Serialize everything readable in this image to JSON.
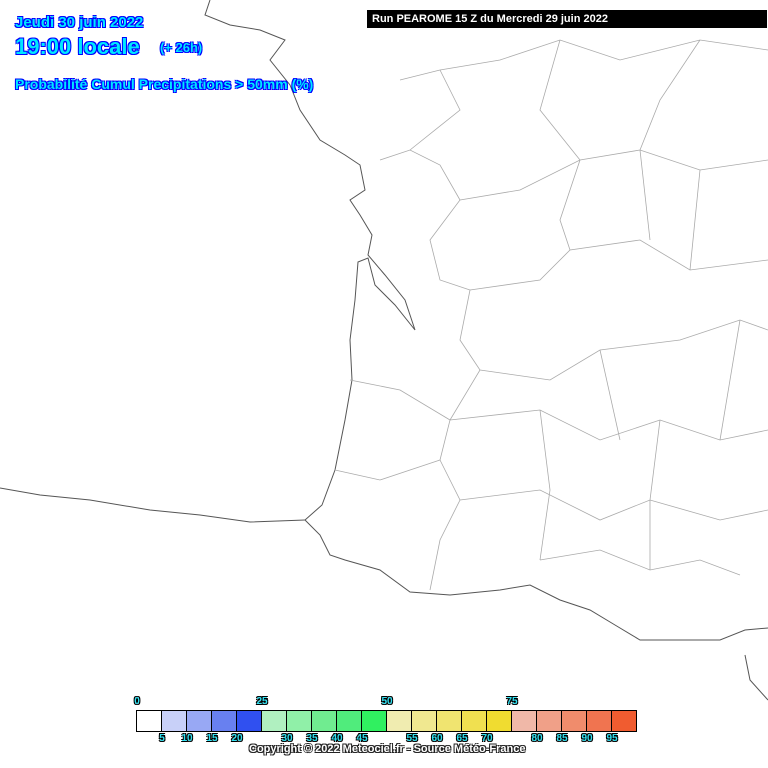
{
  "header": {
    "date": "Jeudi 30 juin 2022",
    "time": "19:00 locale",
    "lead": "(+ 26h)",
    "product": "Probabilité Cumul Precipitations > 50mm (%)",
    "run": "Run PEAROME 15 Z du Mercredi 29 juin 2022"
  },
  "legend": {
    "top_labels": [
      "0",
      "25",
      "50",
      "75"
    ],
    "bottom_labels": [
      "5",
      "10",
      "15",
      "20",
      "30",
      "35",
      "40",
      "45",
      "55",
      "60",
      "65",
      "70",
      "80",
      "85",
      "90",
      "95"
    ],
    "colors": [
      "#ffffff",
      "#c8d0f8",
      "#98a8f4",
      "#6880f0",
      "#3050f0",
      "#b0f0c0",
      "#90f0a8",
      "#70ec90",
      "#50ec7c",
      "#30f060",
      "#f0ecb0",
      "#f0e890",
      "#f0e470",
      "#f0e050",
      "#f0dc30",
      "#f0b8a8",
      "#f0a088",
      "#f08c6c",
      "#f07450",
      "#f05c30"
    ]
  },
  "copyright": "Copyright © 2022 Meteociel.fr - Source Météo-France",
  "map": {
    "region": "France south-west",
    "precipitation_probability_shown": 0
  }
}
